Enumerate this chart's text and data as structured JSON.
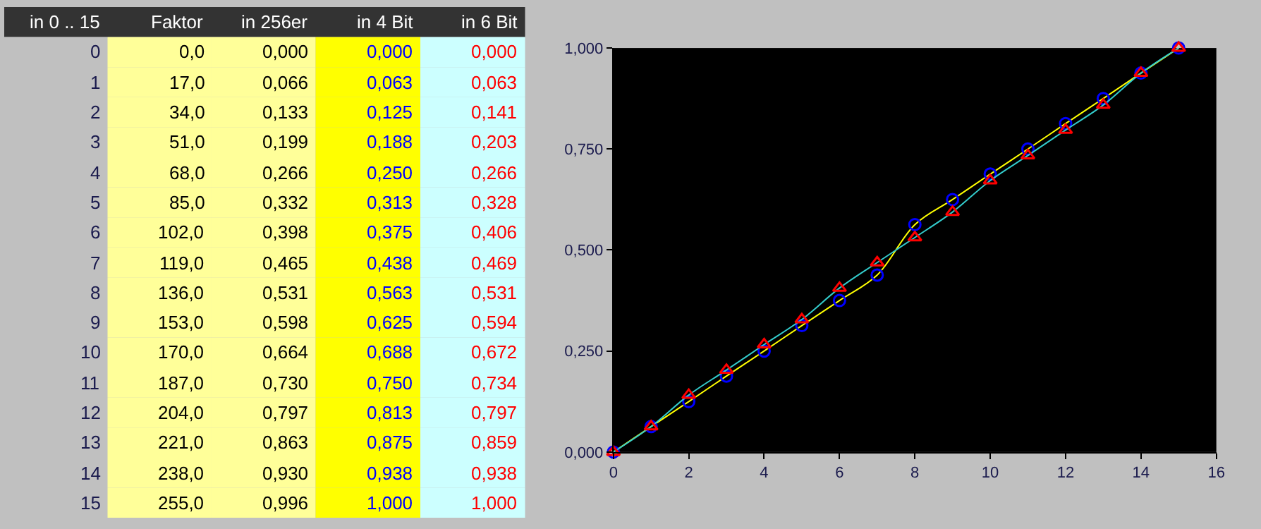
{
  "chart_data": [
    {
      "type": "heatmap",
      "ylabel": "in 0 .. 15",
      "categories": [
        "Faktor",
        "in 256er",
        "in 4 Bit",
        "in 6 Bit"
      ],
      "y_categories": [
        "0",
        "1",
        "2",
        "3",
        "4",
        "5",
        "6",
        "7",
        "8",
        "9",
        "10",
        "11",
        "12",
        "13",
        "14",
        "15"
      ],
      "cells": [
        [
          0,
          0,
          0,
          0
        ],
        [
          17,
          0.066,
          0.063,
          0.063
        ],
        [
          34,
          0.133,
          0.125,
          0.141
        ],
        [
          51,
          0.199,
          0.188,
          0.203
        ],
        [
          68,
          0.266,
          0.25,
          0.266
        ],
        [
          85,
          0.332,
          0.313,
          0.328
        ],
        [
          102,
          0.398,
          0.375,
          0.406
        ],
        [
          119,
          0.465,
          0.438,
          0.469
        ],
        [
          136,
          0.531,
          0.563,
          0.531
        ],
        [
          153,
          0.598,
          0.625,
          0.594
        ],
        [
          170,
          0.664,
          0.688,
          0.672
        ],
        [
          187,
          0.73,
          0.75,
          0.734
        ],
        [
          204,
          0.797,
          0.813,
          0.797
        ],
        [
          221,
          0.863,
          0.875,
          0.859
        ],
        [
          238,
          0.93,
          0.938,
          0.938
        ],
        [
          255,
          0.996,
          1.0,
          1.0
        ]
      ],
      "cell_labels": [
        [
          "0,0",
          "0,000",
          "0,000",
          "0,000"
        ],
        [
          "17,0",
          "0,066",
          "0,063",
          "0,063"
        ],
        [
          "34,0",
          "0,133",
          "0,125",
          "0,141"
        ],
        [
          "51,0",
          "0,199",
          "0,188",
          "0,203"
        ],
        [
          "68,0",
          "0,266",
          "0,250",
          "0,266"
        ],
        [
          "85,0",
          "0,332",
          "0,313",
          "0,328"
        ],
        [
          "102,0",
          "0,398",
          "0,375",
          "0,406"
        ],
        [
          "119,0",
          "0,465",
          "0,438",
          "0,469"
        ],
        [
          "136,0",
          "0,531",
          "0,563",
          "0,531"
        ],
        [
          "153,0",
          "0,598",
          "0,625",
          "0,594"
        ],
        [
          "170,0",
          "0,664",
          "0,688",
          "0,672"
        ],
        [
          "187,0",
          "0,730",
          "0,750",
          "0,734"
        ],
        [
          "204,0",
          "0,797",
          "0,813",
          "0,797"
        ],
        [
          "221,0",
          "0,863",
          "0,875",
          "0,859"
        ],
        [
          "238,0",
          "0,930",
          "0,938",
          "0,938"
        ],
        [
          "255,0",
          "0,996",
          "1,000",
          "1,000"
        ]
      ]
    },
    {
      "type": "line",
      "x": [
        0,
        1,
        2,
        3,
        4,
        5,
        6,
        7,
        8,
        9,
        10,
        11,
        12,
        13,
        14,
        15
      ],
      "xlim": [
        0,
        16
      ],
      "xticks": [
        0,
        2,
        4,
        6,
        8,
        10,
        12,
        14,
        16
      ],
      "ylim": [
        0,
        1
      ],
      "yticks": [
        {
          "value": 0,
          "label": "0,000"
        },
        {
          "value": 0.25,
          "label": "0,250"
        },
        {
          "value": 0.5,
          "label": "0,500"
        },
        {
          "value": 0.75,
          "label": "0,750"
        },
        {
          "value": 1,
          "label": "1,000"
        }
      ],
      "series": [
        {
          "color": "#ffff00",
          "marker": "circle",
          "colors": [
            "#0000ff",
            "#0000ff",
            "#0000ff",
            "#0000ff",
            "#0000ff",
            "#0000ff",
            "#0000ff",
            "#0000ff",
            "#0000ff",
            "#0000ff",
            "#0000ff",
            "#0000ff",
            "#0000ff",
            "#0000ff",
            "#0000ff",
            "#0000ff"
          ],
          "values": [
            0,
            0.063,
            0.125,
            0.188,
            0.25,
            0.313,
            0.375,
            0.438,
            0.563,
            0.625,
            0.688,
            0.75,
            0.813,
            0.875,
            0.938,
            1.0
          ]
        },
        {
          "color": "#33cccc",
          "marker": "triangle",
          "colors": [
            "#ff0000",
            "#ff0000",
            "#ff0000",
            "#ff0000",
            "#ff0000",
            "#ff0000",
            "#ff0000",
            "#ff0000",
            "#ff0000",
            "#ff0000",
            "#ff0000",
            "#ff0000",
            "#ff0000",
            "#ff0000",
            "#ff0000",
            "#ff0000"
          ],
          "values": [
            0,
            0.063,
            0.141,
            0.203,
            0.266,
            0.328,
            0.406,
            0.469,
            0.531,
            0.594,
            0.672,
            0.734,
            0.797,
            0.859,
            0.938,
            1.0
          ]
        }
      ]
    }
  ]
}
